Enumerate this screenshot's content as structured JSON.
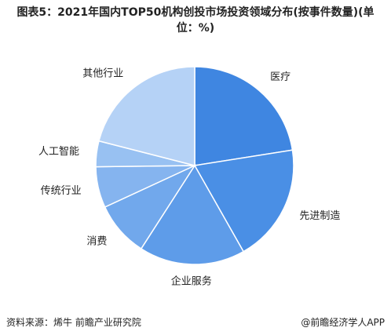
{
  "chart_data": {
    "type": "pie",
    "title": "图表5：2021年国内TOP50机构创投市场投资领域分布(按事件数量)(单位：%)",
    "categories": [
      "医疗",
      "先进制造",
      "企业服务",
      "消费",
      "传统行业",
      "人工智能",
      "其他行业"
    ],
    "values": [
      22.5,
      19.3,
      17.3,
      9,
      6.7,
      4.2,
      21
    ],
    "colors": [
      "#3f86e1",
      "#4a8fe5",
      "#5e9ce9",
      "#71a8ec",
      "#85b4ef",
      "#98c1f2",
      "#b5d2f6"
    ],
    "source": "资料来源：烯牛 前瞻产业研究院",
    "credit": "@前瞻经济学人APP"
  }
}
